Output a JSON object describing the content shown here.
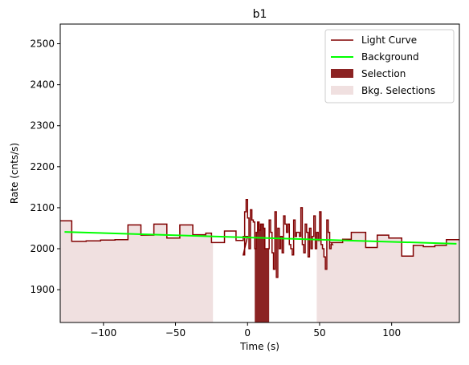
{
  "chart_data": {
    "type": "line",
    "title": "b1",
    "xlabel": "Time (s)",
    "ylabel": "Rate (cnts/s)",
    "xlim": [
      -130,
      147
    ],
    "ylim": [
      1820,
      2548
    ],
    "xticks": [
      -100,
      -50,
      0,
      50,
      100
    ],
    "xtick_labels": [
      "−100",
      "−50",
      "0",
      "50",
      "100"
    ],
    "yticks": [
      1900,
      2000,
      2100,
      2200,
      2300,
      2400,
      2500
    ],
    "ytick_labels": [
      "1900",
      "2000",
      "2100",
      "2200",
      "2300",
      "2400",
      "2500"
    ],
    "grid": false,
    "legend": {
      "placement": "upper right",
      "entries": [
        {
          "label": "Light Curve",
          "kind": "line",
          "color": "#800000"
        },
        {
          "label": "Background",
          "kind": "line",
          "color": "#00ff00"
        },
        {
          "label": "Selection",
          "kind": "patch",
          "color": "#8b2323"
        },
        {
          "label": "Bkg. Selections",
          "kind": "patch",
          "color": "#f0e0e0"
        }
      ]
    },
    "colors": {
      "light_curve": "#800000",
      "background": "#00ff00",
      "selection": "#8b2323",
      "bkg_selection": "#f0e0e0"
    },
    "light_curve_step": {
      "edges": [
        -130,
        -122,
        -112,
        -102,
        -92,
        -83,
        -74,
        -65,
        -56,
        -47,
        -38,
        -29,
        -25,
        -16,
        -8,
        -3,
        0
      ],
      "values": [
        2068,
        2018,
        2019,
        2021,
        2022,
        2058,
        2033,
        2060,
        2026,
        2058,
        2034,
        2038,
        2015,
        2043,
        2020,
        2030
      ]
    },
    "light_curve_fine": {
      "x": [
        -3,
        -2,
        -1,
        0,
        1,
        2,
        3,
        4,
        5,
        6,
        7,
        8,
        9,
        10,
        11,
        12,
        13,
        14,
        15,
        16,
        17,
        18,
        19,
        20,
        21,
        22,
        23,
        24,
        25,
        26,
        27,
        28,
        29,
        30,
        31,
        32,
        33,
        34,
        35,
        36,
        37,
        38,
        39,
        40,
        41,
        42,
        43,
        44,
        45,
        46,
        47,
        48,
        49,
        50,
        51,
        52,
        53,
        54,
        55,
        56,
        57,
        58
      ],
      "y": [
        1985,
        2090,
        2120,
        2075,
        2000,
        2095,
        2070,
        2065,
        2000,
        2040,
        2065,
        2045,
        2060,
        2060,
        2050,
        2000,
        2000,
        2000,
        2070,
        2040,
        1990,
        1950,
        2090,
        1930,
        2050,
        2000,
        2030,
        1990,
        2080,
        2060,
        2040,
        2060,
        2010,
        2000,
        1985,
        2070,
        2030,
        2040,
        2040,
        2030,
        2100,
        2010,
        1990,
        2060,
        2040,
        1980,
        2050,
        2000,
        2030,
        2080,
        2000,
        2040,
        2020,
        2090,
        2010,
        2000,
        1980,
        1950,
        2070,
        2040,
        2000,
        2010
      ]
    },
    "light_curve_step_after": {
      "edges": [
        58,
        66,
        72,
        82,
        90,
        98,
        107,
        115,
        122,
        130,
        138,
        147
      ],
      "values": [
        2015,
        2023,
        2040,
        2003,
        2033,
        2026,
        1982,
        2008,
        2005,
        2008,
        2022
      ]
    },
    "background_line": {
      "x": [
        -127,
        145
      ],
      "y": [
        2041,
        2012
      ]
    },
    "selection_range": [
      5,
      15
    ],
    "bkg_selection_ranges": [
      [
        -130,
        -24
      ],
      [
        48,
        147
      ]
    ]
  }
}
